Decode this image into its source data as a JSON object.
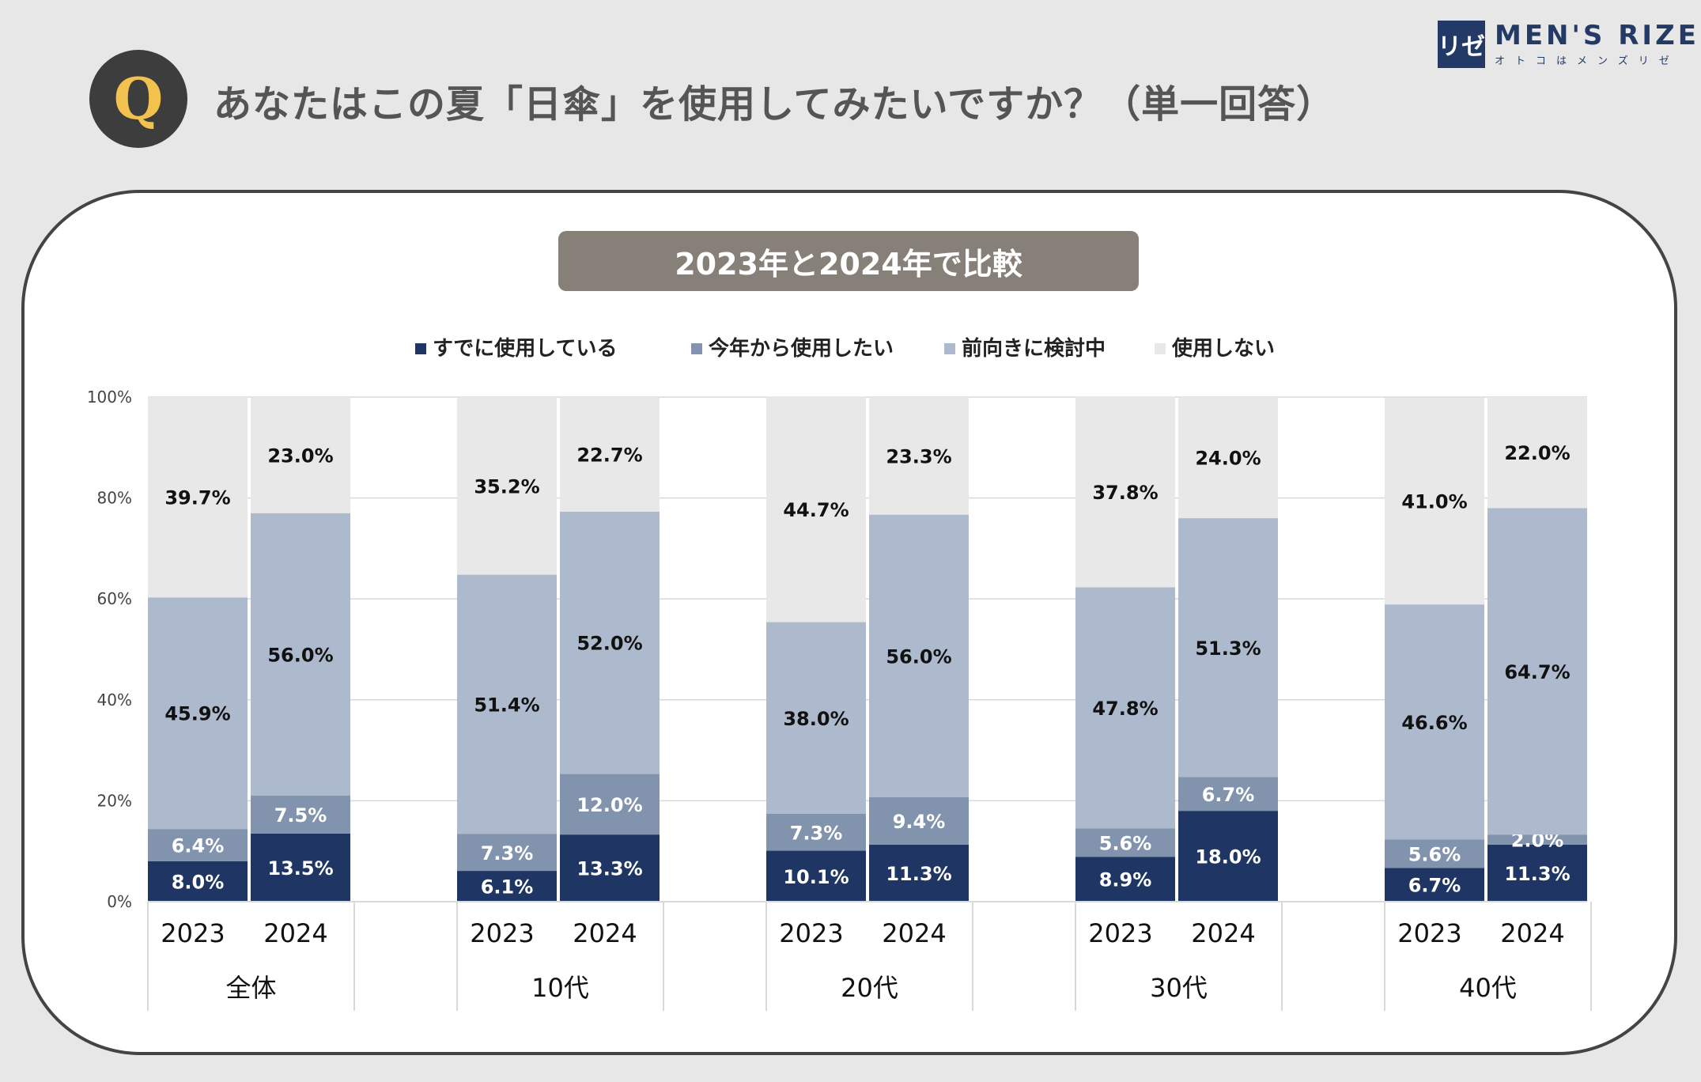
{
  "header": {
    "q_label": "Q",
    "question": "あなたはこの夏「日傘」を使用してみたいですか？（単一回答）"
  },
  "logo": {
    "mark": "リゼ",
    "name": "MEN'S RIZE",
    "sub": "オトコはメンズリゼ"
  },
  "subtitle": "2023年と2024年で比較",
  "colors": {
    "already": "#1f3563",
    "this_year": "#8294ad",
    "considering": "#adb9cc",
    "not_use": "#e8e8e8",
    "grid": "#d9d9d9"
  },
  "chart_data": {
    "type": "bar",
    "stacked": true,
    "ylim": [
      0,
      100
    ],
    "yticks": [
      "0%",
      "20%",
      "40%",
      "60%",
      "80%",
      "100%"
    ],
    "groups": [
      "全体",
      "10代",
      "20代",
      "30代",
      "40代"
    ],
    "years": [
      "2023",
      "2024"
    ],
    "series": [
      {
        "name": "すでに使用している",
        "values": [
          8.0,
          13.5,
          6.1,
          13.3,
          10.1,
          11.3,
          8.9,
          18.0,
          6.7,
          11.3
        ],
        "labels": [
          "8.0%",
          "13.5%",
          "6.1%",
          "13.3%",
          "10.1%",
          "11.3%",
          "8.9%",
          "18.0%",
          "6.7%",
          "11.3%"
        ]
      },
      {
        "name": "今年から使用したい",
        "values": [
          6.4,
          7.5,
          7.3,
          12.0,
          7.3,
          9.4,
          5.6,
          6.7,
          5.6,
          2.0
        ],
        "labels": [
          "6.4%",
          "7.5%",
          "7.3%",
          "12.0%",
          "7.3%",
          "9.4%",
          "5.6%",
          "6.7%",
          "5.6%",
          "2.0%"
        ]
      },
      {
        "name": "前向きに検討中",
        "values": [
          45.9,
          56.0,
          51.4,
          52.0,
          38.0,
          56.0,
          47.8,
          51.3,
          46.6,
          64.7
        ],
        "labels": [
          "45.9%",
          "56.0%",
          "51.4%",
          "52.0%",
          "38.0%",
          "56.0%",
          "47.8%",
          "51.3%",
          "46.6%",
          "64.7%"
        ]
      },
      {
        "name": "使用しない",
        "values": [
          39.7,
          23.0,
          35.2,
          22.7,
          44.7,
          23.3,
          37.8,
          24.0,
          41.0,
          22.0
        ],
        "labels": [
          "39.7%",
          "23.0%",
          "35.2%",
          "22.7%",
          "44.7%",
          "23.3%",
          "37.8%",
          "24.0%",
          "41.0%",
          "22.0%"
        ]
      }
    ]
  }
}
